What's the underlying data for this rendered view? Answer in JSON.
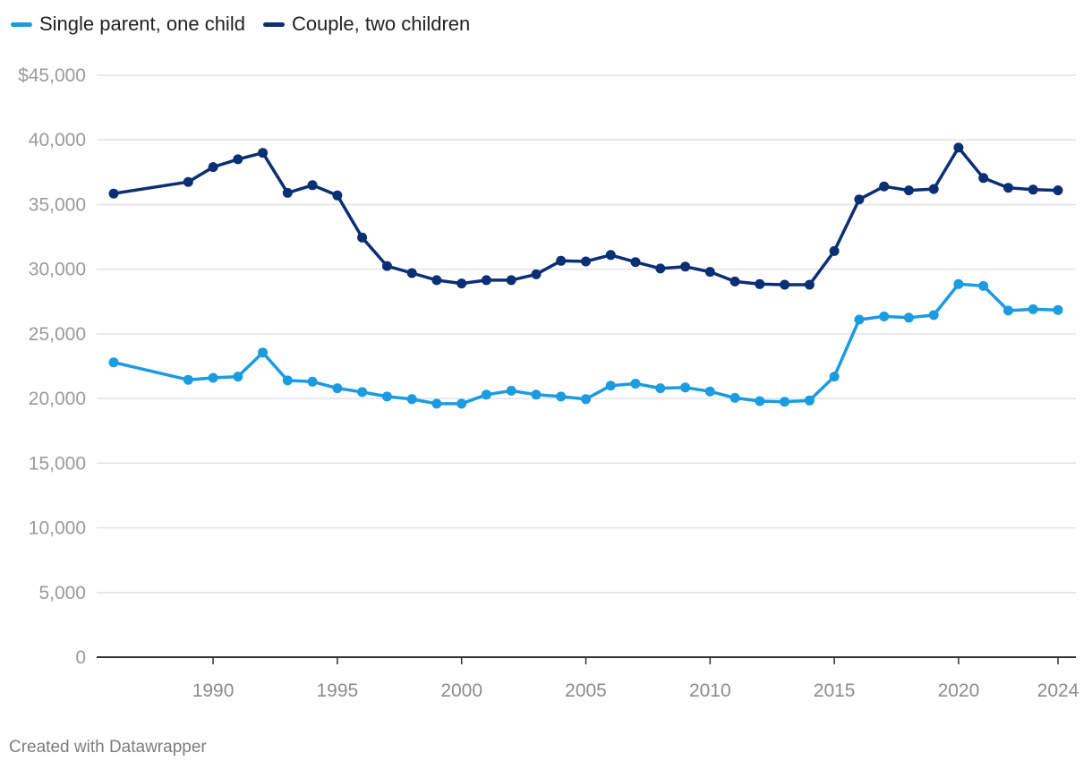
{
  "chart_data": {
    "type": "line",
    "title": "",
    "xlabel": "",
    "ylabel": "",
    "ylim": [
      0,
      45000
    ],
    "xlim": [
      1986,
      2024
    ],
    "yticks": [
      0,
      5000,
      10000,
      15000,
      20000,
      25000,
      30000,
      35000,
      40000,
      45000
    ],
    "ytick_labels": [
      "0",
      "5,000",
      "10,000",
      "15,000",
      "20,000",
      "25,000",
      "30,000",
      "35,000",
      "40,000",
      "$45,000"
    ],
    "xticks": [
      1990,
      1995,
      2000,
      2005,
      2010,
      2015,
      2020,
      2024
    ],
    "xtick_labels": [
      "1990",
      "1995",
      "2000",
      "2005",
      "2010",
      "2015",
      "2020",
      "2024"
    ],
    "grid": true,
    "legend_position": "top-left",
    "series": [
      {
        "name": "Single parent, one child",
        "color": "#1b9be0",
        "x": [
          1986,
          1989,
          1990,
          1991,
          1992,
          1993,
          1994,
          1995,
          1996,
          1997,
          1998,
          1999,
          2000,
          2001,
          2002,
          2003,
          2004,
          2005,
          2006,
          2007,
          2008,
          2009,
          2010,
          2011,
          2012,
          2013,
          2014,
          2015,
          2016,
          2017,
          2018,
          2019,
          2020,
          2021,
          2022,
          2023,
          2024
        ],
        "values": [
          22800,
          21450,
          21600,
          21700,
          23550,
          21400,
          21300,
          20800,
          20500,
          20150,
          19950,
          19600,
          19600,
          20300,
          20600,
          20300,
          20150,
          19950,
          21000,
          21150,
          20800,
          20850,
          20550,
          20050,
          19800,
          19750,
          19850,
          21700,
          26100,
          26350,
          26250,
          26450,
          28850,
          28700,
          26800,
          26900,
          26850
        ]
      },
      {
        "name": "Couple, two children",
        "color": "#0a2f74",
        "x": [
          1986,
          1989,
          1990,
          1991,
          1992,
          1993,
          1994,
          1995,
          1996,
          1997,
          1998,
          1999,
          2000,
          2001,
          2002,
          2003,
          2004,
          2005,
          2006,
          2007,
          2008,
          2009,
          2010,
          2011,
          2012,
          2013,
          2014,
          2015,
          2016,
          2017,
          2018,
          2019,
          2020,
          2021,
          2022,
          2023,
          2024
        ],
        "values": [
          35850,
          36750,
          37900,
          38500,
          39000,
          35900,
          36500,
          35700,
          32450,
          30250,
          29700,
          29150,
          28900,
          29150,
          29150,
          29600,
          30650,
          30600,
          31100,
          30550,
          30050,
          30200,
          29800,
          29050,
          28850,
          28800,
          28800,
          31400,
          35400,
          36400,
          36100,
          36200,
          39400,
          37050,
          36300,
          36150,
          36100
        ]
      }
    ]
  },
  "footer": "Created with Datawrapper"
}
